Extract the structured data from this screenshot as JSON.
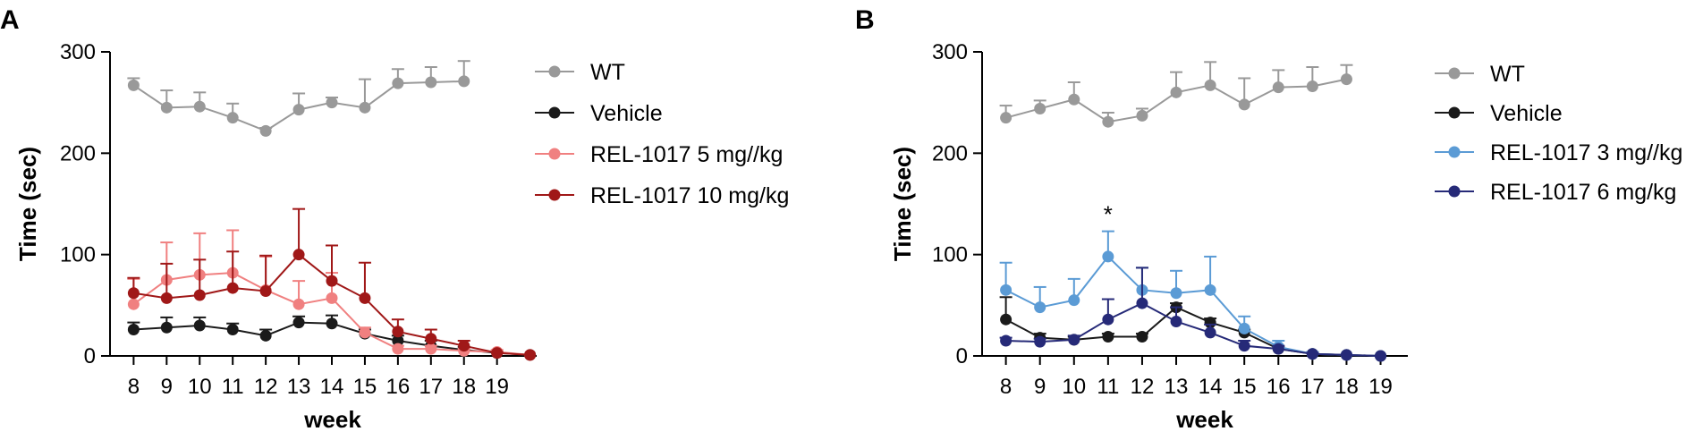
{
  "chart_data": [
    {
      "panel": "A",
      "type": "line",
      "xlabel": "week",
      "ylabel": "Time (sec)",
      "ylim": [
        0,
        300
      ],
      "yticks": [
        0,
        100,
        200,
        300
      ],
      "xticks": [
        8,
        9,
        10,
        11,
        12,
        13,
        14,
        15,
        16,
        17,
        18,
        19
      ],
      "xlim": [
        7.8,
        20.2
      ],
      "legend_position": "right",
      "series": [
        {
          "name": "WT",
          "color": "#999999",
          "x": [
            8,
            9,
            10,
            11,
            12,
            13,
            14,
            15,
            16,
            17,
            18
          ],
          "values": [
            267,
            245,
            246,
            235,
            222,
            243,
            250,
            245,
            269,
            270,
            271
          ],
          "errors": [
            7,
            17,
            14,
            14,
            3,
            16,
            5,
            28,
            14,
            15,
            20
          ]
        },
        {
          "name": "Vehicle",
          "color": "#1a1a1a",
          "x": [
            8,
            9,
            10,
            11,
            12,
            13,
            14,
            15,
            16,
            17,
            18,
            19,
            20
          ],
          "values": [
            26,
            28,
            30,
            26,
            20,
            33,
            32,
            22,
            15,
            10,
            6,
            3,
            1
          ],
          "errors": [
            7,
            10,
            8,
            6,
            6,
            6,
            8,
            4,
            5,
            5,
            3,
            1,
            0
          ]
        },
        {
          "name": "REL-1017 5 mg//kg",
          "color": "#f08080",
          "x": [
            8,
            9,
            10,
            11,
            12,
            13,
            14,
            15,
            16,
            17,
            18,
            19,
            20
          ],
          "values": [
            51,
            75,
            80,
            82,
            65,
            51,
            57,
            23,
            7,
            7,
            5,
            4,
            1
          ],
          "errors": [
            25,
            37,
            41,
            42,
            33,
            23,
            25,
            5,
            3,
            3,
            2,
            2,
            0
          ]
        },
        {
          "name": "REL-1017 10 mg/kg",
          "color": "#a01818",
          "x": [
            8,
            9,
            10,
            11,
            12,
            13,
            14,
            15,
            16,
            17,
            18,
            19,
            20
          ],
          "values": [
            62,
            57,
            60,
            67,
            64,
            100,
            74,
            57,
            24,
            17,
            10,
            3,
            1
          ],
          "errors": [
            15,
            34,
            35,
            36,
            35,
            45,
            35,
            35,
            12,
            9,
            5,
            1,
            0
          ]
        }
      ]
    },
    {
      "panel": "B",
      "type": "line",
      "xlabel": "week",
      "ylabel": "Time (sec)",
      "ylim": [
        0,
        300
      ],
      "yticks": [
        0,
        100,
        200,
        300
      ],
      "xticks": [
        8,
        9,
        10,
        11,
        12,
        13,
        14,
        15,
        16,
        17,
        18,
        19
      ],
      "xlim": [
        7.8,
        19.8
      ],
      "legend_position": "right",
      "annotations": [
        {
          "text": "*",
          "x": 11,
          "y": 132
        }
      ],
      "series": [
        {
          "name": "WT",
          "color": "#999999",
          "x": [
            8,
            9,
            10,
            11,
            12,
            13,
            14,
            15,
            16,
            17,
            18
          ],
          "values": [
            235,
            244,
            253,
            231,
            237,
            260,
            267,
            248,
            265,
            266,
            273
          ],
          "errors": [
            12,
            8,
            17,
            9,
            7,
            20,
            23,
            26,
            17,
            19,
            14
          ]
        },
        {
          "name": "Vehicle",
          "color": "#1a1a1a",
          "x": [
            8,
            9,
            10,
            11,
            12,
            13,
            14,
            15,
            16,
            17,
            18,
            19
          ],
          "values": [
            36,
            18,
            16,
            19,
            19,
            48,
            33,
            23,
            7,
            2,
            1,
            0
          ],
          "errors": [
            22,
            4,
            3,
            3,
            3,
            4,
            4,
            3,
            2,
            1,
            0,
            0
          ]
        },
        {
          "name": "REL-1017 3 mg//kg",
          "color": "#5b9bd5",
          "x": [
            8,
            9,
            10,
            11,
            12,
            13,
            14,
            15,
            16,
            17,
            18,
            19
          ],
          "values": [
            65,
            48,
            55,
            98,
            65,
            62,
            65,
            27,
            9,
            2,
            1,
            0
          ],
          "errors": [
            27,
            20,
            21,
            25,
            22,
            22,
            33,
            12,
            6,
            2,
            0,
            0
          ]
        },
        {
          "name": "REL-1017 6 mg/kg",
          "color": "#262a78",
          "x": [
            8,
            9,
            10,
            11,
            12,
            13,
            14,
            15,
            16,
            17,
            18,
            19
          ],
          "values": [
            15,
            14,
            16,
            36,
            52,
            34,
            23,
            10,
            7,
            2,
            1,
            0
          ],
          "errors": [
            3,
            3,
            4,
            20,
            35,
            14,
            8,
            5,
            3,
            1,
            0,
            0
          ]
        }
      ]
    }
  ]
}
